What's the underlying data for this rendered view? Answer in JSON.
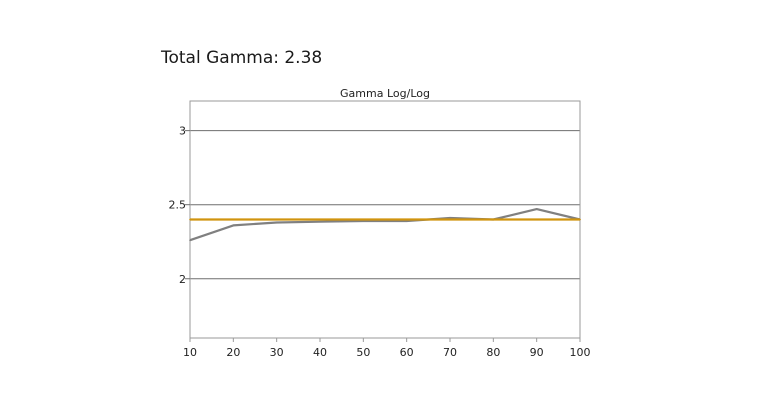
{
  "header": {
    "title": "Total Gamma: 2.38"
  },
  "chart_data": {
    "type": "line",
    "title": "Gamma Log/Log",
    "xlabel": "",
    "ylabel": "",
    "x": [
      10,
      20,
      30,
      40,
      50,
      60,
      70,
      80,
      90,
      100
    ],
    "xlim": [
      10,
      100
    ],
    "ylim": [
      1.6,
      3.2
    ],
    "x_ticks": [
      "10",
      "20",
      "30",
      "40",
      "50",
      "60",
      "70",
      "80",
      "90",
      "100"
    ],
    "y_ticks": [
      {
        "value": 3,
        "label": "3"
      },
      {
        "value": 2.5,
        "label": "2.5"
      },
      {
        "value": 2,
        "label": "2"
      }
    ],
    "grid": "horizontal",
    "series": [
      {
        "values": [
          2.26,
          2.36,
          2.38,
          2.385,
          2.39,
          2.39,
          2.41,
          2.4,
          2.47,
          2.4
        ],
        "color": "#808080"
      },
      {
        "values": [
          2.4,
          2.4,
          2.4,
          2.4,
          2.4,
          2.4,
          2.4,
          2.4,
          2.4,
          2.4
        ],
        "color": "#d0940f"
      }
    ]
  }
}
